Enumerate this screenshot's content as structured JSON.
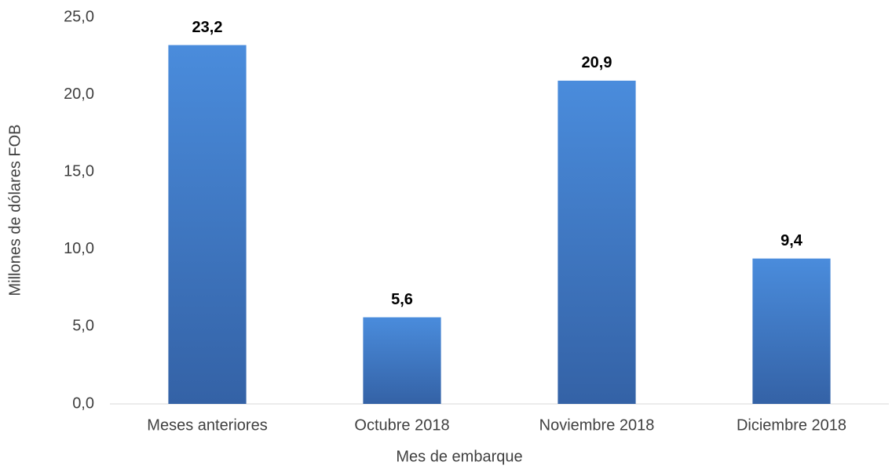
{
  "chart_data": {
    "type": "bar",
    "x_label": "Mes de embarque",
    "y_label": "Millones de dólares FOB",
    "categories": [
      "Meses anteriores",
      "Octubre 2018",
      "Noviembre 2018",
      "Diciembre 2018"
    ],
    "values": [
      23.2,
      5.6,
      20.9,
      9.4
    ],
    "value_labels": [
      "23,2",
      "5,6",
      "20,9",
      "9,4"
    ],
    "color": "#3f78c4",
    "ylim": [
      0,
      25
    ],
    "yticks": [
      {
        "value": 0,
        "label": "0,0"
      },
      {
        "value": 5,
        "label": "5,0"
      },
      {
        "value": 10,
        "label": "10,0"
      },
      {
        "value": 15,
        "label": "15,0"
      },
      {
        "value": 20,
        "label": "20,0"
      },
      {
        "value": 25,
        "label": "25,0"
      }
    ],
    "grid": false
  }
}
